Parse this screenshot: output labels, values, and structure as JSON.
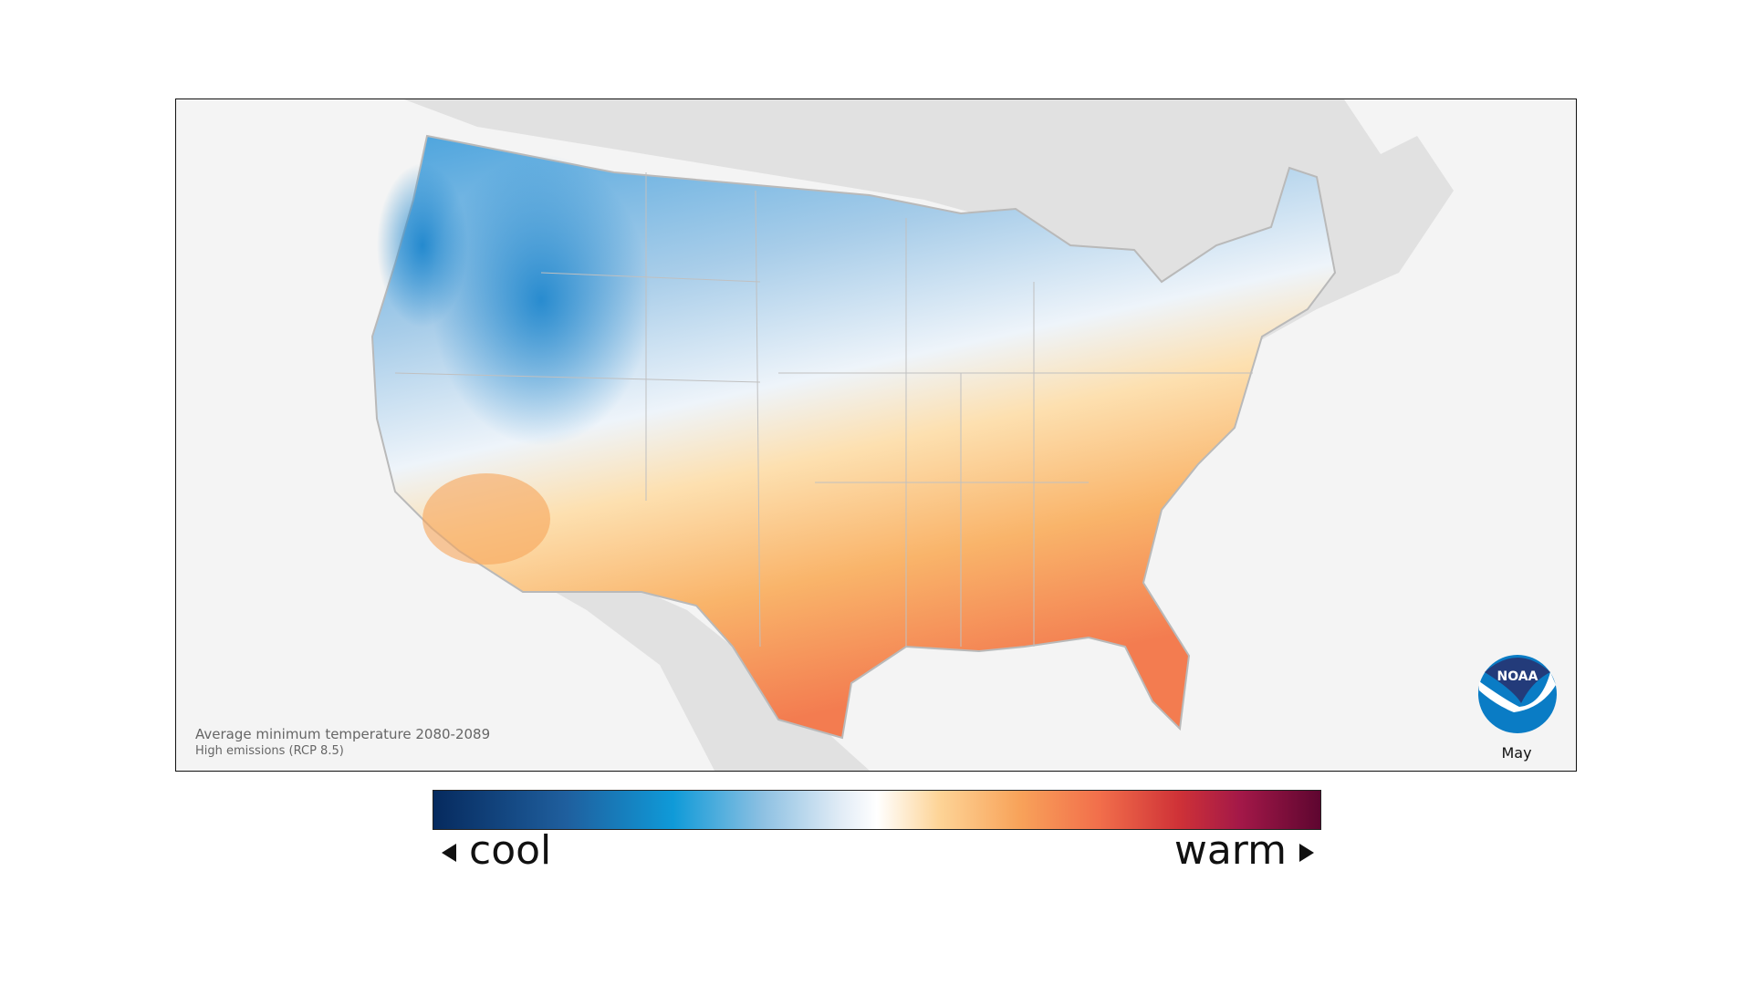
{
  "map": {
    "title": "Average minimum temperature 2080-2089",
    "subtitle": "High emissions (RCP 8.5)",
    "month": "May",
    "logo_text": "NOAA",
    "colors": {
      "background": "#f4f4f4",
      "land_outside": "#e1e1e1",
      "cool": "#0f9ad8",
      "warm": "#f26f4b"
    }
  },
  "legend": {
    "cool_label": "cool",
    "warm_label": "warm",
    "gradient": [
      "#062a5e",
      "#1f5f9e",
      "#0f9ad8",
      "#8cc0e2",
      "#ffffff",
      "#fdd497",
      "#f8a35a",
      "#f26f4b",
      "#cf3237",
      "#a31848",
      "#5e0630"
    ]
  }
}
